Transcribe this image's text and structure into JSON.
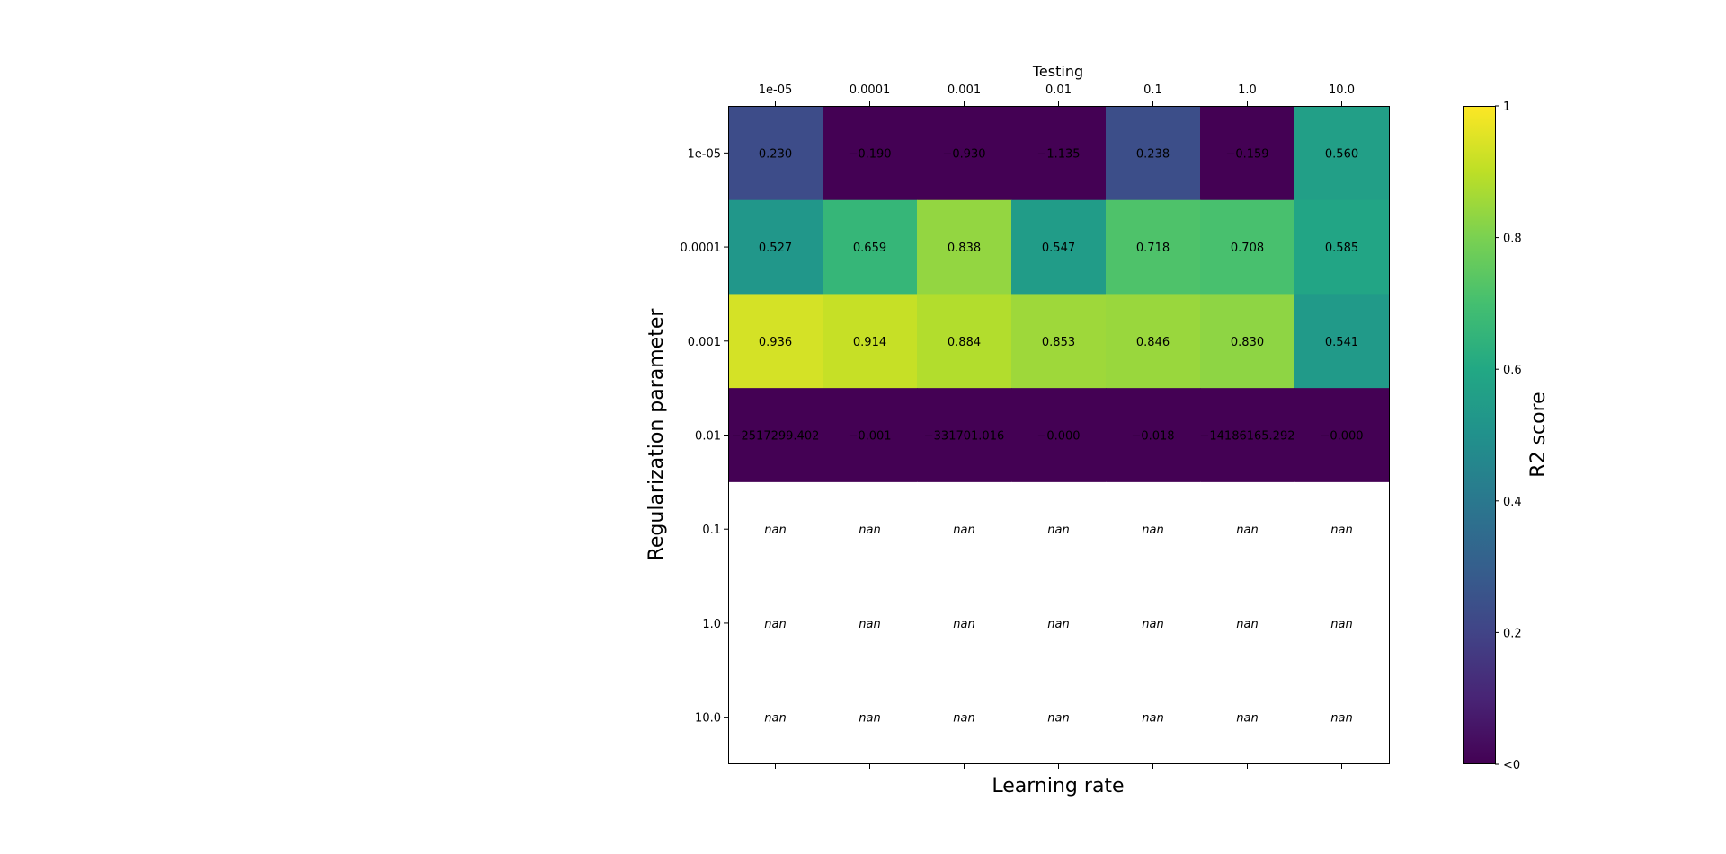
{
  "chart_data": {
    "type": "heatmap",
    "title": "Testing",
    "xlabel": "Learning rate",
    "ylabel": "Regularization parameter",
    "x_categories": [
      "1e-05",
      "0.0001",
      "0.001",
      "0.01",
      "0.1",
      "1.0",
      "10.0"
    ],
    "y_categories": [
      "1e-05",
      "0.0001",
      "0.001",
      "0.01",
      "0.1",
      "1.0",
      "10.0"
    ],
    "values": [
      [
        0.23,
        -0.19,
        -0.93,
        -1.135,
        0.238,
        -0.159,
        0.56
      ],
      [
        0.527,
        0.659,
        0.838,
        0.547,
        0.718,
        0.708,
        0.585
      ],
      [
        0.936,
        0.914,
        0.884,
        0.853,
        0.846,
        0.83,
        0.541
      ],
      [
        -2517299.402,
        -0.001,
        -331701.016,
        -0.0,
        -0.018,
        -14186165.292,
        -0.0
      ],
      [
        null,
        null,
        null,
        null,
        null,
        null,
        null
      ],
      [
        null,
        null,
        null,
        null,
        null,
        null,
        null
      ],
      [
        null,
        null,
        null,
        null,
        null,
        null,
        null
      ]
    ],
    "cell_labels": [
      [
        "0.230",
        "−0.190",
        "−0.930",
        "−1.135",
        "0.238",
        "−0.159",
        "0.560"
      ],
      [
        "0.527",
        "0.659",
        "0.838",
        "0.547",
        "0.718",
        "0.708",
        "0.585"
      ],
      [
        "0.936",
        "0.914",
        "0.884",
        "0.853",
        "0.846",
        "0.830",
        "0.541"
      ],
      [
        "−2517299.402",
        "−0.001",
        "−331701.016",
        "−0.000",
        "−0.018",
        "−14186165.292",
        "−0.000"
      ],
      [
        "nan",
        "nan",
        "nan",
        "nan",
        "nan",
        "nan",
        "nan"
      ],
      [
        "nan",
        "nan",
        "nan",
        "nan",
        "nan",
        "nan",
        "nan"
      ],
      [
        "nan",
        "nan",
        "nan",
        "nan",
        "nan",
        "nan",
        "nan"
      ]
    ],
    "colormap": "viridis",
    "clim": [
      0,
      1
    ],
    "colorbar": {
      "label": "R2 score",
      "ticks": [
        0,
        0.2,
        0.4,
        0.6,
        0.8,
        1
      ],
      "tick_labels": [
        "<0",
        "0.2",
        "0.4",
        "0.6",
        "0.8",
        "1"
      ]
    },
    "grid": false
  }
}
